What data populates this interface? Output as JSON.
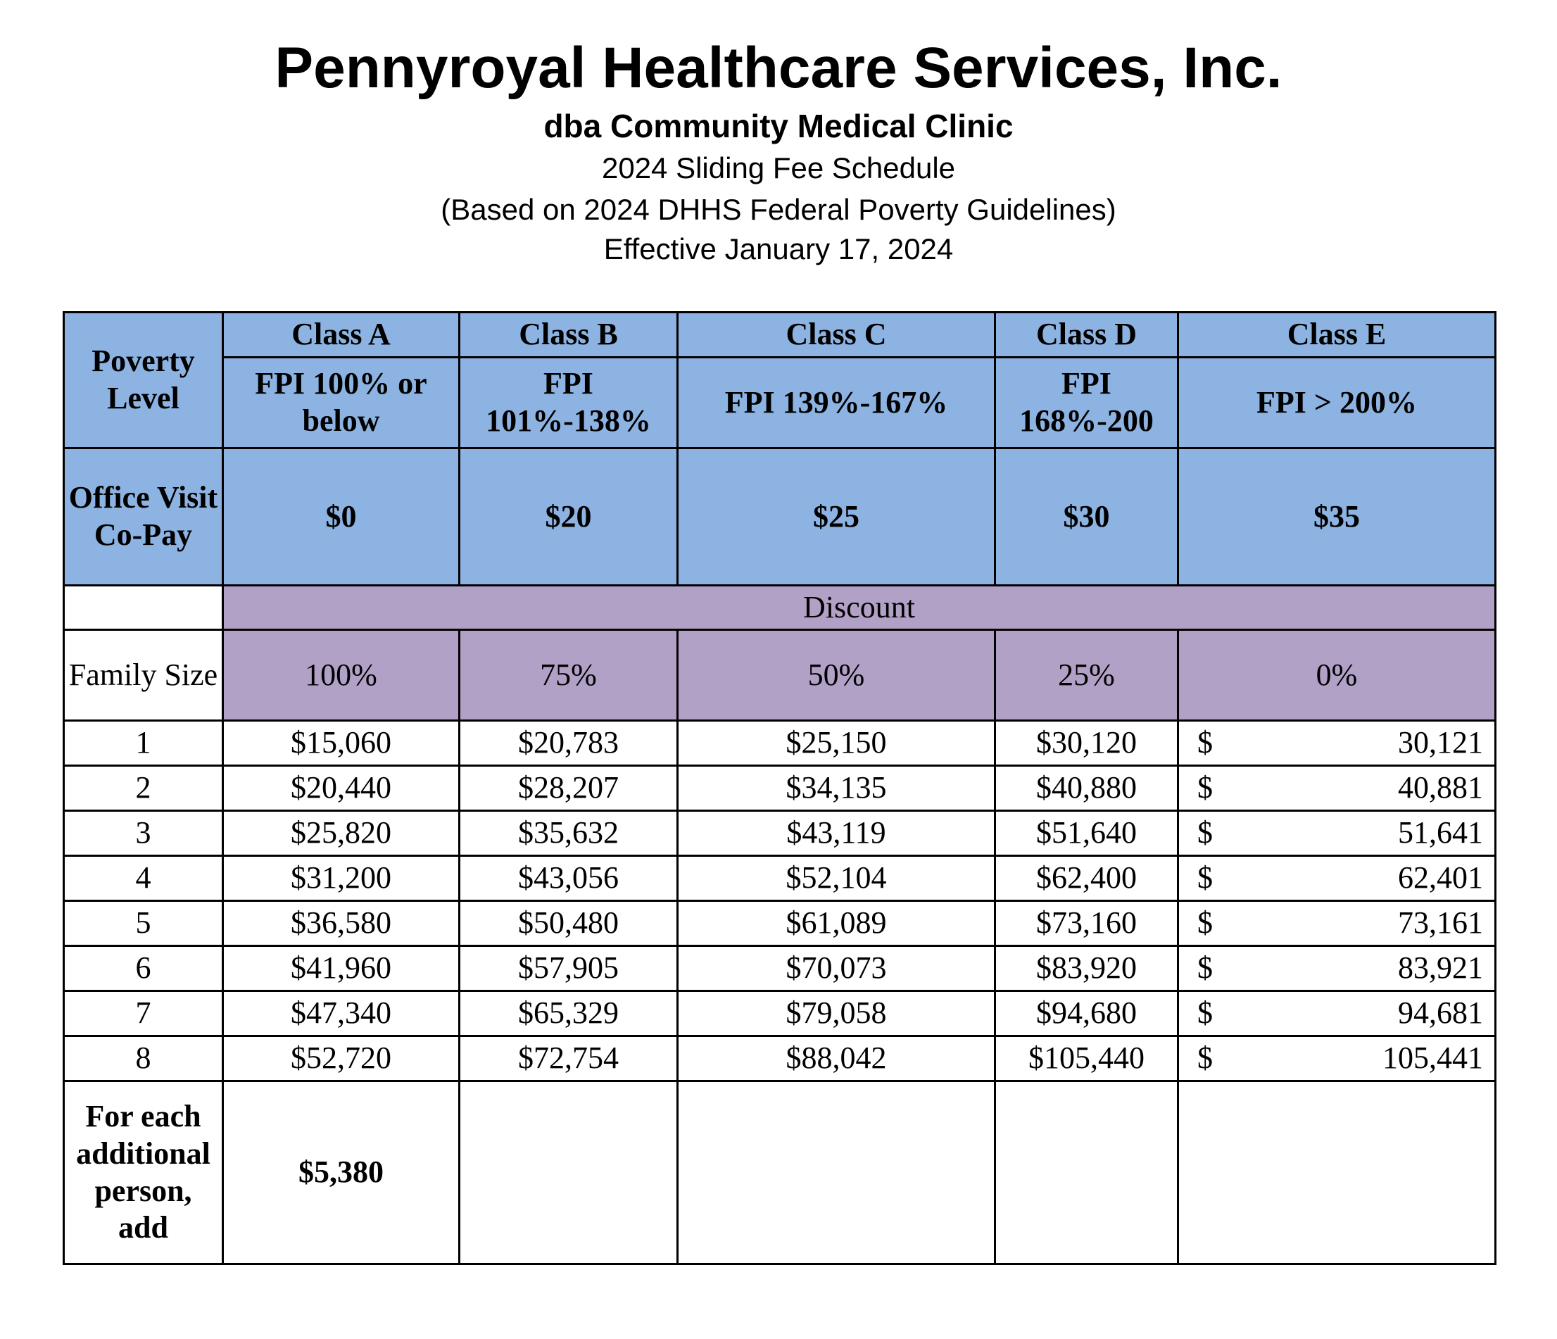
{
  "header": {
    "title": "Pennyroyal Healthcare Services, Inc.",
    "subtitle": "dba Community Medical Clinic",
    "schedule": "2024 Sliding Fee Schedule",
    "basis": "(Based on 2024 DHHS Federal Poverty Guidelines)",
    "effective": "Effective January 17, 2024"
  },
  "colors": {
    "header_blue": "#8db3e2",
    "discount_purple": "#b2a1c7"
  },
  "table": {
    "poverty_level_label": "Poverty Level",
    "copay_label": "Office Visit Co-Pay",
    "discount_label": "Discount",
    "family_size_label": "Family Size",
    "classes": [
      {
        "name": "Class A",
        "fpi": "FPI 100% or below",
        "copay": "$0",
        "discount": "100%"
      },
      {
        "name": "Class B",
        "fpi": "FPI 101%-138%",
        "copay": "$20",
        "discount": "75%"
      },
      {
        "name": "Class C",
        "fpi": "FPI 139%-167%",
        "copay": "$25",
        "discount": "50%"
      },
      {
        "name": "Class D",
        "fpi": "FPI 168%-200",
        "copay": "$30",
        "discount": "25%"
      },
      {
        "name": "Class E",
        "fpi": "FPI > 200%",
        "copay": "$35",
        "discount": "0%"
      }
    ],
    "rows": [
      {
        "size": "1",
        "a": "$15,060",
        "b": "$20,783",
        "c": "$25,150",
        "d": "$30,120",
        "e_sym": "$",
        "e": "30,121"
      },
      {
        "size": "2",
        "a": "$20,440",
        "b": "$28,207",
        "c": "$34,135",
        "d": "$40,880",
        "e_sym": "$",
        "e": "40,881"
      },
      {
        "size": "3",
        "a": "$25,820",
        "b": "$35,632",
        "c": "$43,119",
        "d": "$51,640",
        "e_sym": "$",
        "e": "51,641"
      },
      {
        "size": "4",
        "a": "$31,200",
        "b": "$43,056",
        "c": "$52,104",
        "d": "$62,400",
        "e_sym": "$",
        "e": "62,401"
      },
      {
        "size": "5",
        "a": "$36,580",
        "b": "$50,480",
        "c": "$61,089",
        "d": "$73,160",
        "e_sym": "$",
        "e": "73,161"
      },
      {
        "size": "6",
        "a": "$41,960",
        "b": "$57,905",
        "c": "$70,073",
        "d": "$83,920",
        "e_sym": "$",
        "e": "83,921"
      },
      {
        "size": "7",
        "a": "$47,340",
        "b": "$65,329",
        "c": "$79,058",
        "d": "$94,680",
        "e_sym": "$",
        "e": "94,681"
      },
      {
        "size": "8",
        "a": "$52,720",
        "b": "$72,754",
        "c": "$88,042",
        "d": "$105,440",
        "e_sym": "$",
        "e": "105,441"
      }
    ],
    "additional_label": "For each additional person, add",
    "additional_value": "$5,380"
  }
}
